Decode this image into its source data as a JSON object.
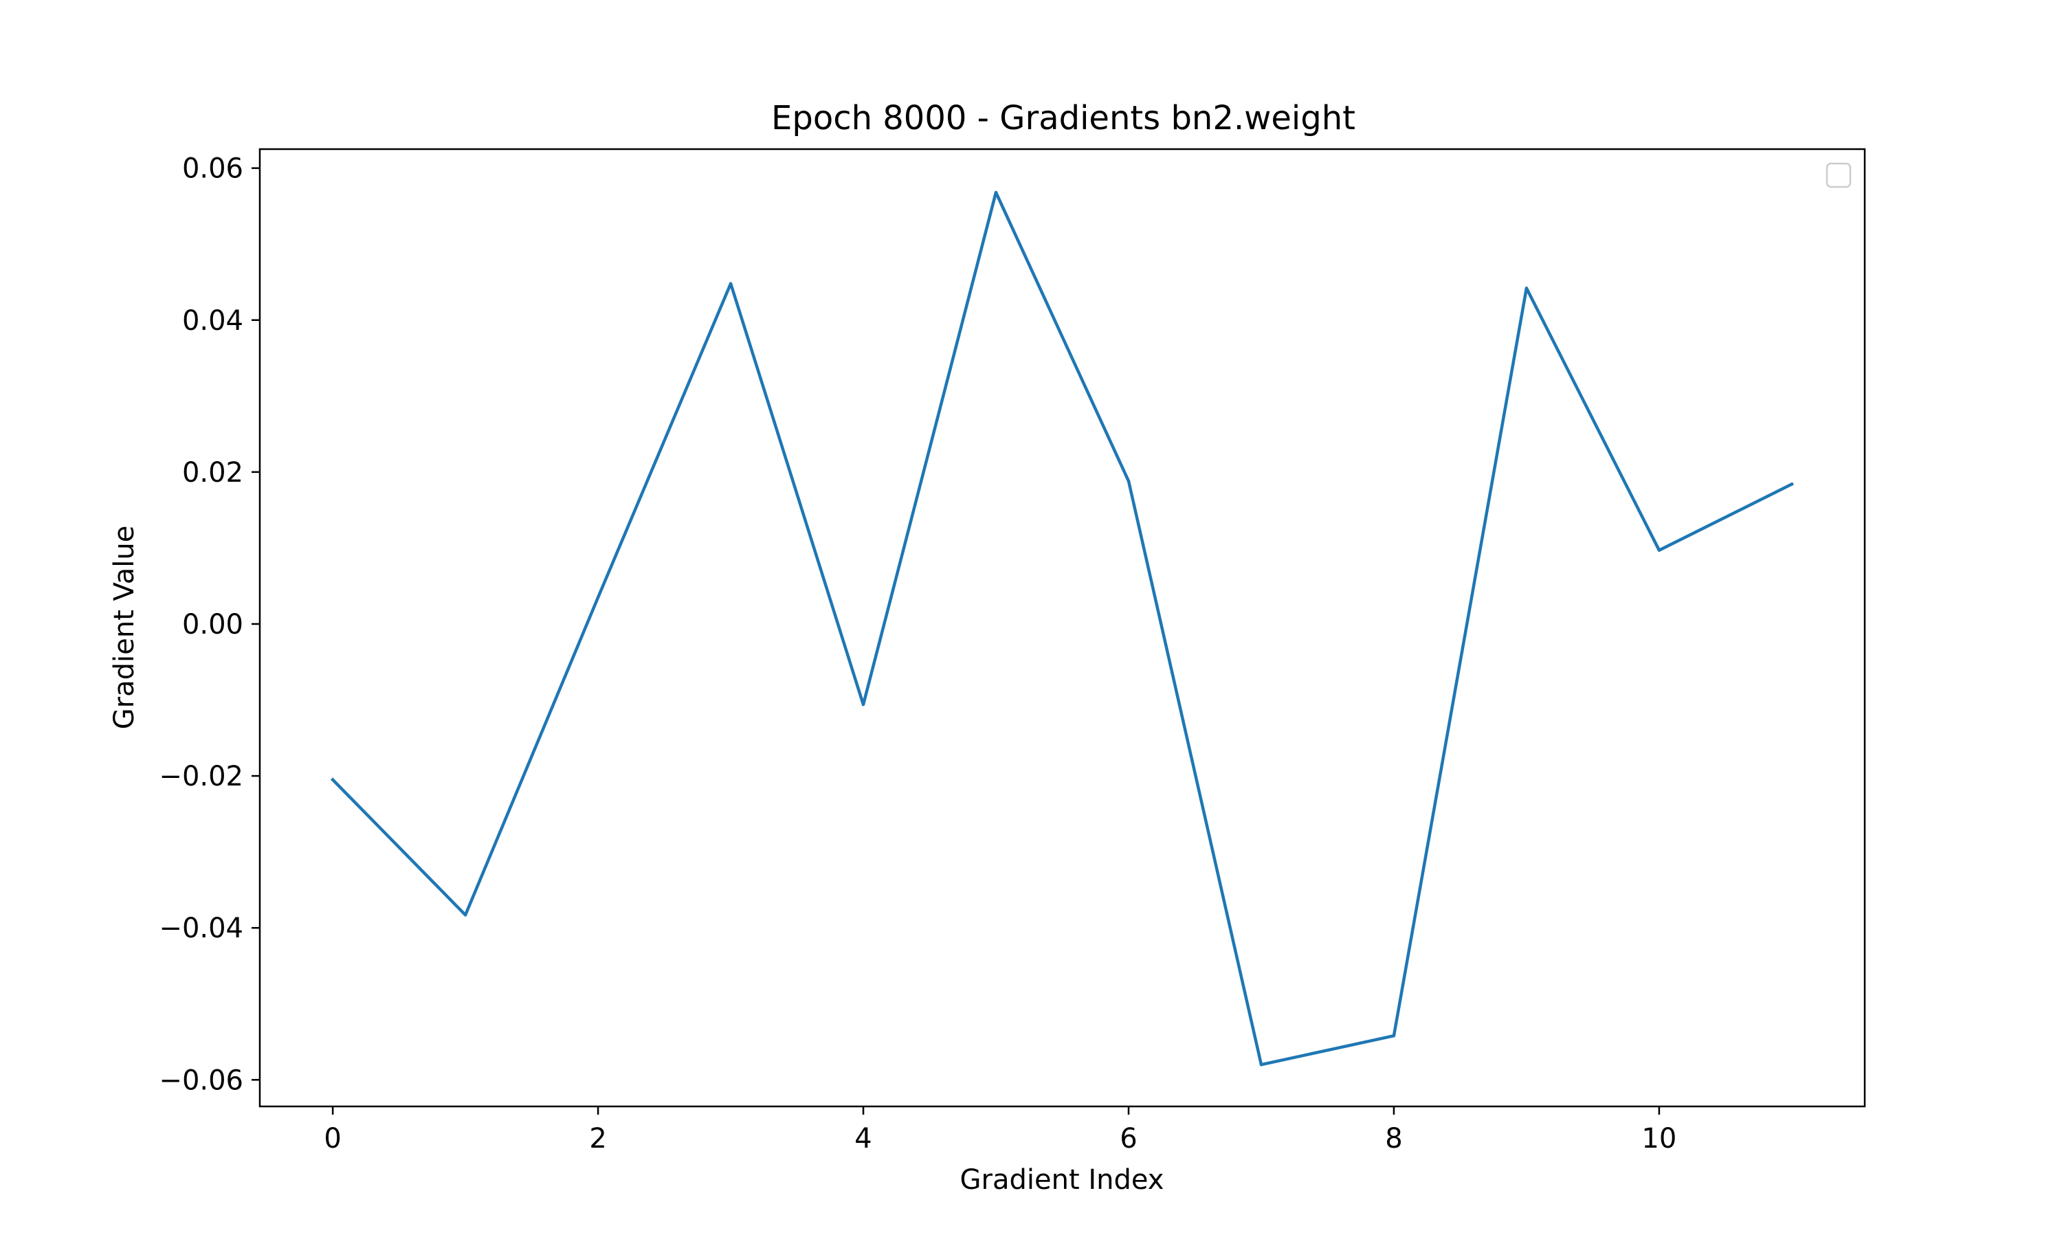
{
  "chart_data": {
    "type": "line",
    "title": "Epoch 8000 - Gradients bn2.weight",
    "xlabel": "Gradient Index",
    "ylabel": "Gradient Value",
    "x": [
      0,
      1,
      2,
      3,
      4,
      5,
      6,
      7,
      8,
      9,
      10,
      11
    ],
    "series": [
      {
        "values": [
          -0.0205,
          -0.0383,
          0.0035,
          0.0448,
          -0.0106,
          0.0568,
          0.0188,
          -0.058,
          -0.0542,
          0.0442,
          0.0097,
          0.0184
        ],
        "color": "#1f77b4"
      }
    ],
    "xlim": [
      -0.55,
      11.55
    ],
    "ylim": [
      -0.0635,
      0.0625
    ],
    "x_ticks": [
      0,
      2,
      4,
      6,
      8,
      10
    ],
    "x_tick_labels": [
      "0",
      "2",
      "4",
      "6",
      "8",
      "10"
    ],
    "y_ticks": [
      0.06,
      0.04,
      0.02,
      0.0,
      -0.02,
      -0.04,
      -0.06
    ],
    "y_tick_labels": [
      "0.06",
      "0.04",
      "0.02",
      "0.00",
      "−0.02",
      "−0.04",
      "−0.06"
    ],
    "grid": false,
    "legend": {
      "placement": "upper right",
      "entries": []
    }
  }
}
